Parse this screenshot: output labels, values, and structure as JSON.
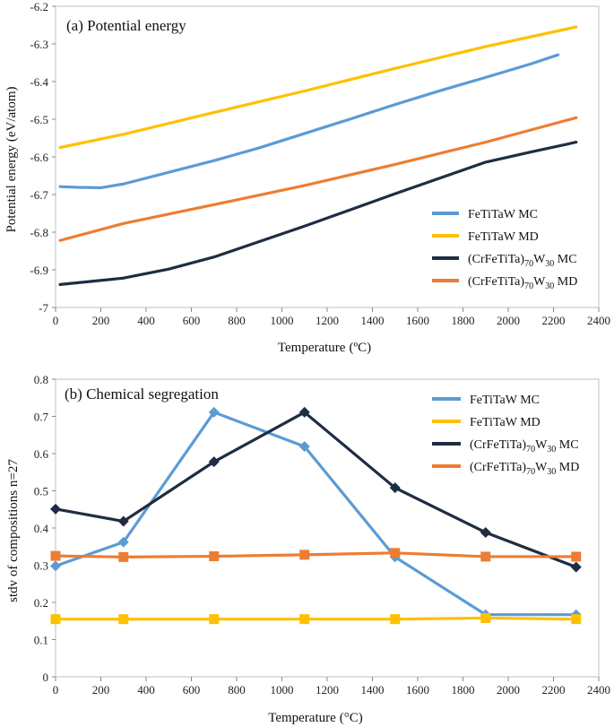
{
  "chart_data": [
    {
      "type": "line",
      "title": "(a)  Potential  energy",
      "xlabel": "Temperature",
      "xlabel_unit": "(ºC)",
      "ylabel": "Potential energy (eV/atom)",
      "xlim": [
        0,
        2400
      ],
      "ylim": [
        -7,
        -6.2
      ],
      "xticks": [
        "0",
        "200",
        "400",
        "600",
        "800",
        "1000",
        "1200",
        "1400",
        "1600",
        "1800",
        "2000",
        "2200",
        "2400"
      ],
      "yticks": [
        "-6.2",
        "-6.3",
        "-6.4",
        "-6.5",
        "-6.6",
        "-6.7",
        "-6.8",
        "-6.9",
        "-7"
      ],
      "legend_position": "bottom-right",
      "series": [
        {
          "name": "FeTiTaW MC",
          "color": "#5b9bd5",
          "x": [
            20,
            100,
            200,
            300,
            500,
            700,
            900,
            1100,
            1300,
            1500,
            1700,
            1900,
            2100,
            2220
          ],
          "y": [
            -6.679,
            -6.681,
            -6.682,
            -6.672,
            -6.641,
            -6.61,
            -6.576,
            -6.538,
            -6.5,
            -6.461,
            -6.424,
            -6.389,
            -6.353,
            -6.329
          ]
        },
        {
          "name": "FeTiTaW MD",
          "color": "#ffc000",
          "x": [
            20,
            300,
            700,
            1100,
            1500,
            1900,
            2300
          ],
          "y": [
            -6.575,
            -6.54,
            -6.482,
            -6.425,
            -6.365,
            -6.307,
            -6.255
          ]
        },
        {
          "name": "(CrFeTiTa)70W30 MC",
          "color": "#1f2d43",
          "x": [
            20,
            300,
            500,
            700,
            900,
            1100,
            1300,
            1500,
            1700,
            1900,
            2100,
            2300
          ],
          "y": [
            -6.939,
            -6.922,
            -6.898,
            -6.866,
            -6.825,
            -6.784,
            -6.741,
            -6.698,
            -6.656,
            -6.614,
            -6.587,
            -6.561
          ]
        },
        {
          "name": "(CrFeTiTa)70W30 MD",
          "color": "#ed7d31",
          "x": [
            20,
            300,
            700,
            1100,
            1500,
            1900,
            2300
          ],
          "y": [
            -6.822,
            -6.777,
            -6.727,
            -6.676,
            -6.62,
            -6.561,
            -6.496
          ]
        }
      ]
    },
    {
      "type": "line",
      "title": "(b) Chemical  segregation",
      "xlabel": "Temperature",
      "xlabel_unit": "(°C)",
      "ylabel": "stdv of compositions  n=27",
      "xlim": [
        0,
        2400
      ],
      "ylim": [
        0,
        0.8
      ],
      "xticks": [
        "0",
        "200",
        "400",
        "600",
        "800",
        "1000",
        "1200",
        "1400",
        "1600",
        "1800",
        "2000",
        "2200",
        "2400"
      ],
      "yticks": [
        "0.8",
        "0.7",
        "0.6",
        "0.5",
        "0.4",
        "0.3",
        "0.2",
        "0.1",
        "0"
      ],
      "legend_position": "top-right",
      "x": [
        0,
        300,
        700,
        1100,
        1500,
        1900,
        2300
      ],
      "series": [
        {
          "name": "FeTiTaW MC",
          "color": "#5b9bd5",
          "marker": "diamond",
          "values": [
            0.298,
            0.362,
            0.711,
            0.619,
            0.322,
            0.167,
            0.167
          ]
        },
        {
          "name": "FeTiTaW MD",
          "color": "#ffc000",
          "marker": "square",
          "values": [
            0.155,
            0.155,
            0.155,
            0.155,
            0.155,
            0.158,
            0.155
          ]
        },
        {
          "name": "(CrFeTiTa)70W30 MC",
          "color": "#1f2d43",
          "marker": "diamond",
          "values": [
            0.451,
            0.418,
            0.578,
            0.711,
            0.508,
            0.388,
            0.295
          ]
        },
        {
          "name": "(CrFeTiTa)70W30 MD",
          "color": "#ed7d31",
          "marker": "square",
          "values": [
            0.325,
            0.322,
            0.324,
            0.328,
            0.333,
            0.323,
            0.323
          ]
        }
      ]
    }
  ],
  "legend_a": [
    {
      "base": "FeTiTaW MC",
      "color": "#5b9bd5"
    },
    {
      "base": "FeTiTaW MD",
      "color": "#ffc000"
    },
    {
      "base": "(CrFeTiTa)",
      "sub1": "70",
      "mid": "W",
      "sub2": "30",
      "tail": " MC",
      "color": "#1f2d43"
    },
    {
      "base": "(CrFeTiTa)",
      "sub1": "70",
      "mid": "W",
      "sub2": "30",
      "tail": " MD",
      "color": "#ed7d31"
    }
  ],
  "legend_b": [
    {
      "base": "FeTiTaW MC",
      "color": "#5b9bd5"
    },
    {
      "base": "FeTiTaW MD",
      "color": "#ffc000"
    },
    {
      "base": "(CrFeTiTa)",
      "sub1": "70",
      "mid": "W",
      "sub2": "30",
      "tail": " MC",
      "color": "#1f2d43"
    },
    {
      "base": "(CrFeTiTa)",
      "sub1": "70",
      "mid": "W",
      "sub2": "30",
      "tail": " MD",
      "color": "#ed7d31"
    }
  ]
}
